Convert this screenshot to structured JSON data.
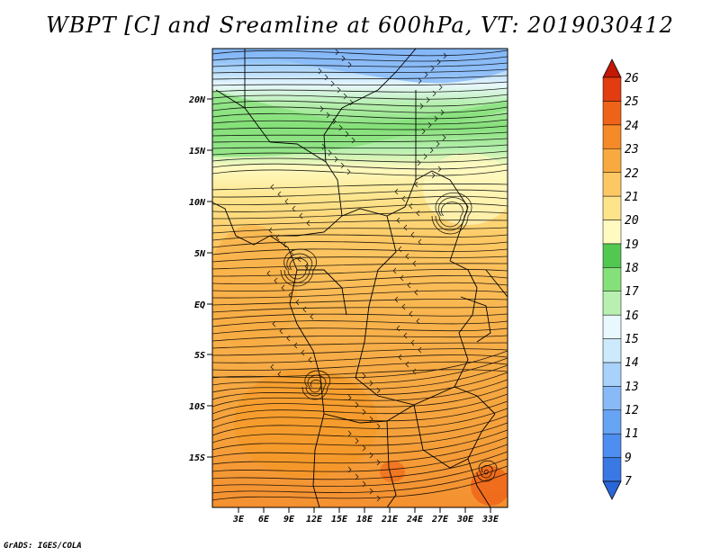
{
  "title": "WBPT [C] and Sreamline at 600hPa, VT: 2019030412",
  "credit": "GrADS: IGES/COLA",
  "map": {
    "lat_labels": [
      "20N",
      "15N",
      "10N",
      "5N",
      "EQ",
      "5S",
      "10S",
      "15S"
    ],
    "lon_labels": [
      "3E",
      "6E",
      "9E",
      "12E",
      "15E",
      "18E",
      "21E",
      "24E",
      "27E",
      "30E",
      "33E"
    ]
  },
  "colorbar": {
    "labels": [
      "7",
      "9",
      "11",
      "12",
      "13",
      "14",
      "15",
      "16",
      "17",
      "18",
      "19",
      "20",
      "21",
      "22",
      "23",
      "24",
      "25",
      "26"
    ],
    "colors": [
      "#2a66d8",
      "#3a78e4",
      "#4e8ef0",
      "#68a4f4",
      "#88baf8",
      "#a8d2fa",
      "#cdeafc",
      "#e8f8fc",
      "#b8f0b0",
      "#86e07a",
      "#52c850",
      "#fffac0",
      "#fde48a",
      "#fdc864",
      "#f8aa40",
      "#f58a28",
      "#ef6318",
      "#e23c10",
      "#c41806"
    ]
  }
}
